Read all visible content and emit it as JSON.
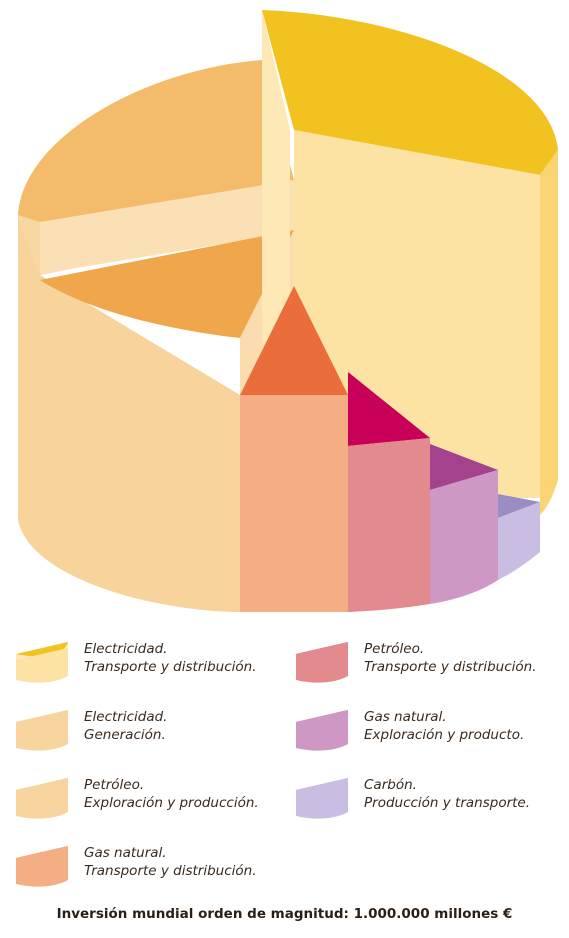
{
  "chart_data": {
    "type": "pie",
    "style": "3d-stepped",
    "title": "",
    "categories": [
      "Electricidad. Transporte y distribución.",
      "Electricidad. Generación.",
      "Petróleo. Exploración y producción.",
      "Gas natural. Transporte y distribución.",
      "Petróleo. Transporte y distribución.",
      "Gas natural. Exploración y producto.",
      "Carbón. Producción y transporte."
    ],
    "values": [
      40,
      28,
      12,
      7,
      5,
      4,
      2
    ],
    "colors": [
      "#f2c320",
      "#f4bc6a",
      "#f0a64a",
      "#ea6e3c",
      "#c8005a",
      "#a4428e",
      "#9b8cc4"
    ],
    "side_colors": [
      "#fde3a3",
      "#f8d59e",
      "#f8d59e",
      "#f4ae84",
      "#e38a8f",
      "#cf98c4",
      "#c9bee2"
    ]
  },
  "legend": [
    {
      "line1": "Electricidad.",
      "line2": "Transporte y distribución."
    },
    {
      "line1": "Electricidad.",
      "line2": "Generación."
    },
    {
      "line1": "Petróleo.",
      "line2": "Exploración y producción."
    },
    {
      "line1": "Gas natural.",
      "line2": "Transporte y distribución."
    },
    {
      "line1": "Petróleo.",
      "line2": "Transporte y distribución."
    },
    {
      "line1": "Gas natural.",
      "line2": "Exploración y producto."
    },
    {
      "line1": "Carbón.",
      "line2": "Producción y transporte."
    }
  ],
  "footer": "Inversión mundial orden de magnitud: 1.000.000 millones €"
}
